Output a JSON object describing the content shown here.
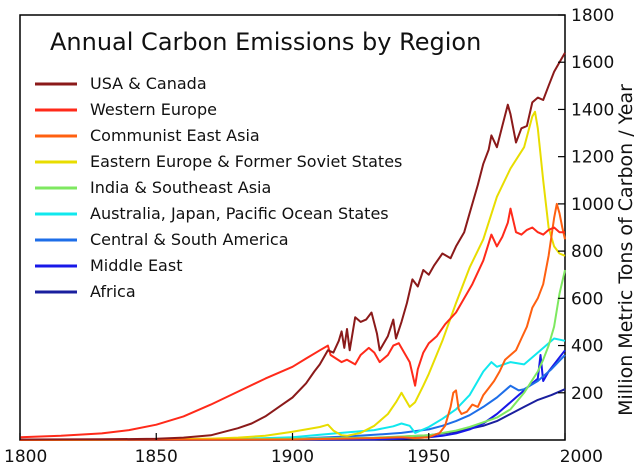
{
  "chart_data": {
    "type": "line",
    "title": "Annual Carbon Emissions by Region",
    "xlabel": "",
    "ylabel": "Million Metric Tons of Carbon / Year",
    "xlim": [
      1800,
      2000
    ],
    "ylim": [
      0,
      1800
    ],
    "x_ticks": [
      "1800",
      "1850",
      "1900",
      "1950",
      "2000"
    ],
    "y_ticks": [
      "200",
      "400",
      "600",
      "800",
      "1000",
      "1200",
      "1400",
      "1600",
      "1800"
    ],
    "legend_position": "top-left",
    "grid": false,
    "series": [
      {
        "name": "USA & Canada",
        "color": "#8b1a1a",
        "points": [
          [
            1800,
            2
          ],
          [
            1830,
            3
          ],
          [
            1850,
            5
          ],
          [
            1860,
            10
          ],
          [
            1870,
            20
          ],
          [
            1880,
            50
          ],
          [
            1885,
            70
          ],
          [
            1890,
            100
          ],
          [
            1895,
            140
          ],
          [
            1900,
            180
          ],
          [
            1905,
            240
          ],
          [
            1908,
            290
          ],
          [
            1910,
            320
          ],
          [
            1913,
            380
          ],
          [
            1915,
            370
          ],
          [
            1917,
            420
          ],
          [
            1918,
            460
          ],
          [
            1919,
            390
          ],
          [
            1920,
            470
          ],
          [
            1921,
            380
          ],
          [
            1923,
            520
          ],
          [
            1925,
            500
          ],
          [
            1927,
            510
          ],
          [
            1929,
            540
          ],
          [
            1931,
            450
          ],
          [
            1932,
            380
          ],
          [
            1933,
            400
          ],
          [
            1935,
            440
          ],
          [
            1937,
            510
          ],
          [
            1938,
            430
          ],
          [
            1940,
            500
          ],
          [
            1942,
            580
          ],
          [
            1944,
            680
          ],
          [
            1946,
            650
          ],
          [
            1948,
            720
          ],
          [
            1950,
            700
          ],
          [
            1952,
            740
          ],
          [
            1955,
            790
          ],
          [
            1958,
            770
          ],
          [
            1960,
            820
          ],
          [
            1963,
            880
          ],
          [
            1965,
            960
          ],
          [
            1968,
            1080
          ],
          [
            1970,
            1170
          ],
          [
            1972,
            1230
          ],
          [
            1973,
            1290
          ],
          [
            1975,
            1240
          ],
          [
            1977,
            1330
          ],
          [
            1979,
            1420
          ],
          [
            1980,
            1380
          ],
          [
            1982,
            1260
          ],
          [
            1984,
            1320
          ],
          [
            1986,
            1330
          ],
          [
            1988,
            1430
          ],
          [
            1990,
            1450
          ],
          [
            1992,
            1440
          ],
          [
            1994,
            1500
          ],
          [
            1996,
            1560
          ],
          [
            1998,
            1600
          ],
          [
            2000,
            1640
          ]
        ]
      },
      {
        "name": "Western Europe",
        "color": "#ff2a1a",
        "points": [
          [
            1800,
            12
          ],
          [
            1815,
            18
          ],
          [
            1830,
            28
          ],
          [
            1840,
            42
          ],
          [
            1850,
            65
          ],
          [
            1860,
            100
          ],
          [
            1870,
            150
          ],
          [
            1880,
            205
          ],
          [
            1890,
            260
          ],
          [
            1900,
            310
          ],
          [
            1905,
            345
          ],
          [
            1910,
            380
          ],
          [
            1913,
            400
          ],
          [
            1914,
            360
          ],
          [
            1918,
            330
          ],
          [
            1920,
            340
          ],
          [
            1923,
            320
          ],
          [
            1925,
            360
          ],
          [
            1928,
            390
          ],
          [
            1930,
            370
          ],
          [
            1932,
            330
          ],
          [
            1935,
            360
          ],
          [
            1937,
            400
          ],
          [
            1939,
            410
          ],
          [
            1941,
            370
          ],
          [
            1943,
            330
          ],
          [
            1944,
            280
          ],
          [
            1945,
            230
          ],
          [
            1946,
            300
          ],
          [
            1948,
            370
          ],
          [
            1950,
            410
          ],
          [
            1953,
            440
          ],
          [
            1956,
            490
          ],
          [
            1960,
            540
          ],
          [
            1963,
            600
          ],
          [
            1966,
            660
          ],
          [
            1970,
            760
          ],
          [
            1973,
            870
          ],
          [
            1975,
            820
          ],
          [
            1977,
            860
          ],
          [
            1979,
            920
          ],
          [
            1980,
            980
          ],
          [
            1982,
            880
          ],
          [
            1984,
            870
          ],
          [
            1986,
            890
          ],
          [
            1988,
            900
          ],
          [
            1990,
            880
          ],
          [
            1992,
            870
          ],
          [
            1994,
            890
          ],
          [
            1996,
            900
          ],
          [
            1998,
            880
          ],
          [
            2000,
            880
          ]
        ]
      },
      {
        "name": "Communist East Asia",
        "color": "#ff6010",
        "points": [
          [
            1800,
            0
          ],
          [
            1900,
            2
          ],
          [
            1930,
            8
          ],
          [
            1940,
            12
          ],
          [
            1945,
            8
          ],
          [
            1950,
            12
          ],
          [
            1954,
            30
          ],
          [
            1956,
            60
          ],
          [
            1958,
            140
          ],
          [
            1959,
            200
          ],
          [
            1960,
            210
          ],
          [
            1961,
            130
          ],
          [
            1962,
            110
          ],
          [
            1964,
            120
          ],
          [
            1966,
            150
          ],
          [
            1968,
            140
          ],
          [
            1970,
            190
          ],
          [
            1972,
            220
          ],
          [
            1974,
            250
          ],
          [
            1976,
            290
          ],
          [
            1978,
            340
          ],
          [
            1980,
            360
          ],
          [
            1982,
            380
          ],
          [
            1984,
            430
          ],
          [
            1986,
            480
          ],
          [
            1988,
            560
          ],
          [
            1990,
            600
          ],
          [
            1992,
            660
          ],
          [
            1994,
            780
          ],
          [
            1996,
            940
          ],
          [
            1997,
            1000
          ],
          [
            1998,
            960
          ],
          [
            1999,
            900
          ],
          [
            2000,
            850
          ]
        ]
      },
      {
        "name": "Eastern Europe & Former Soviet States",
        "color": "#e8dd00",
        "points": [
          [
            1800,
            0
          ],
          [
            1850,
            2
          ],
          [
            1870,
            6
          ],
          [
            1880,
            10
          ],
          [
            1890,
            18
          ],
          [
            1900,
            35
          ],
          [
            1910,
            55
          ],
          [
            1913,
            65
          ],
          [
            1915,
            40
          ],
          [
            1918,
            20
          ],
          [
            1920,
            18
          ],
          [
            1925,
            30
          ],
          [
            1930,
            60
          ],
          [
            1935,
            110
          ],
          [
            1938,
            160
          ],
          [
            1940,
            200
          ],
          [
            1941,
            180
          ],
          [
            1943,
            140
          ],
          [
            1945,
            160
          ],
          [
            1948,
            230
          ],
          [
            1950,
            280
          ],
          [
            1955,
            420
          ],
          [
            1960,
            580
          ],
          [
            1965,
            730
          ],
          [
            1970,
            850
          ],
          [
            1975,
            1030
          ],
          [
            1980,
            1150
          ],
          [
            1985,
            1240
          ],
          [
            1988,
            1370
          ],
          [
            1989,
            1390
          ],
          [
            1990,
            1320
          ],
          [
            1992,
            1100
          ],
          [
            1994,
            900
          ],
          [
            1996,
            820
          ],
          [
            1998,
            790
          ],
          [
            2000,
            780
          ]
        ]
      },
      {
        "name": "India & Southeast Asia",
        "color": "#7ee860",
        "points": [
          [
            1800,
            0
          ],
          [
            1900,
            5
          ],
          [
            1930,
            10
          ],
          [
            1950,
            20
          ],
          [
            1960,
            40
          ],
          [
            1965,
            55
          ],
          [
            1970,
            75
          ],
          [
            1975,
            95
          ],
          [
            1980,
            130
          ],
          [
            1985,
            200
          ],
          [
            1990,
            290
          ],
          [
            1992,
            340
          ],
          [
            1994,
            400
          ],
          [
            1996,
            480
          ],
          [
            1998,
            620
          ],
          [
            2000,
            720
          ]
        ]
      },
      {
        "name": "Australia, Japan, Pacific Ocean States",
        "color": "#10e8ee",
        "points": [
          [
            1800,
            0
          ],
          [
            1880,
            4
          ],
          [
            1900,
            12
          ],
          [
            1910,
            22
          ],
          [
            1920,
            32
          ],
          [
            1930,
            42
          ],
          [
            1937,
            58
          ],
          [
            1940,
            70
          ],
          [
            1943,
            60
          ],
          [
            1945,
            30
          ],
          [
            1948,
            45
          ],
          [
            1950,
            55
          ],
          [
            1955,
            90
          ],
          [
            1960,
            130
          ],
          [
            1965,
            190
          ],
          [
            1970,
            290
          ],
          [
            1973,
            330
          ],
          [
            1975,
            310
          ],
          [
            1980,
            330
          ],
          [
            1985,
            320
          ],
          [
            1990,
            370
          ],
          [
            1993,
            400
          ],
          [
            1996,
            430
          ],
          [
            2000,
            420
          ]
        ]
      },
      {
        "name": "Central & South America",
        "color": "#1e6ee8",
        "points": [
          [
            1800,
            0
          ],
          [
            1900,
            5
          ],
          [
            1920,
            15
          ],
          [
            1930,
            22
          ],
          [
            1940,
            30
          ],
          [
            1950,
            45
          ],
          [
            1955,
            60
          ],
          [
            1960,
            80
          ],
          [
            1965,
            105
          ],
          [
            1970,
            140
          ],
          [
            1975,
            180
          ],
          [
            1980,
            230
          ],
          [
            1983,
            210
          ],
          [
            1985,
            215
          ],
          [
            1990,
            250
          ],
          [
            1995,
            300
          ],
          [
            2000,
            360
          ]
        ]
      },
      {
        "name": "Middle East",
        "color": "#1818e8",
        "points": [
          [
            1800,
            0
          ],
          [
            1930,
            2
          ],
          [
            1940,
            5
          ],
          [
            1950,
            12
          ],
          [
            1955,
            18
          ],
          [
            1960,
            28
          ],
          [
            1965,
            45
          ],
          [
            1970,
            70
          ],
          [
            1975,
            110
          ],
          [
            1980,
            160
          ],
          [
            1985,
            210
          ],
          [
            1989,
            250
          ],
          [
            1990,
            260
          ],
          [
            1991,
            360
          ],
          [
            1992,
            250
          ],
          [
            1994,
            290
          ],
          [
            1996,
            320
          ],
          [
            1998,
            350
          ],
          [
            2000,
            380
          ]
        ]
      },
      {
        "name": "Africa",
        "color": "#1a1f9e",
        "points": [
          [
            1800,
            0
          ],
          [
            1900,
            3
          ],
          [
            1930,
            8
          ],
          [
            1950,
            20
          ],
          [
            1960,
            35
          ],
          [
            1970,
            60
          ],
          [
            1975,
            80
          ],
          [
            1980,
            110
          ],
          [
            1985,
            140
          ],
          [
            1990,
            170
          ],
          [
            1995,
            190
          ],
          [
            2000,
            215
          ]
        ]
      }
    ]
  }
}
